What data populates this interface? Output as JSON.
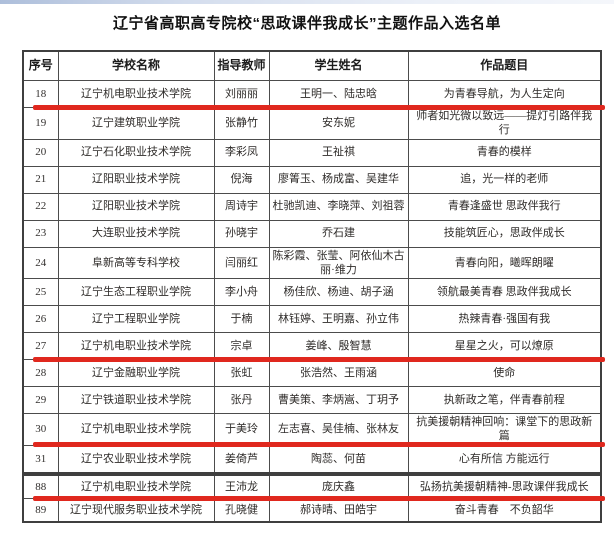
{
  "page": {
    "title": "辽宁省高职高专院校“思政课伴我成长”主题作品入选名单"
  },
  "highlight_color": "#e0281e",
  "table": {
    "headers": [
      "序号",
      "学校名称",
      "指导教师",
      "学生姓名",
      "作品题目"
    ],
    "sections": [
      {
        "rows": [
          {
            "no": "18",
            "school": "辽宁机电职业技术学院",
            "teacher": "刘丽丽",
            "students": "王明一、陆忠晗",
            "work": "为青春导航，为人生定向",
            "highlighted": true
          },
          {
            "no": "19",
            "school": "辽宁建筑职业学院",
            "teacher": "张静竹",
            "students": "安东妮",
            "work": "师者如光微以致远——提灯引路伴我行",
            "highlighted": false
          },
          {
            "no": "20",
            "school": "辽宁石化职业技术学院",
            "teacher": "李彩凤",
            "students": "王祉祺",
            "work": "青春的模样",
            "highlighted": false
          },
          {
            "no": "21",
            "school": "辽阳职业技术学院",
            "teacher": "倪海",
            "students": "廖箐玉、杨成富、吴建华",
            "work": "追，光一样的老师",
            "highlighted": false
          },
          {
            "no": "22",
            "school": "辽阳职业技术学院",
            "teacher": "周诗宇",
            "students": "杜驰凯迪、李晓萍、刘祖蓉",
            "work": "青春逢盛世 思政伴我行",
            "highlighted": false
          },
          {
            "no": "23",
            "school": "大连职业技术学院",
            "teacher": "孙晓宇",
            "students": "乔石建",
            "work": "技能筑匠心，思政伴成长",
            "highlighted": false
          },
          {
            "no": "24",
            "school": "阜新高等专科学校",
            "teacher": "闫丽红",
            "students": "陈彩霞、张莹、阿依仙木古丽·维力",
            "work": "青春向阳，曦晖朗曜",
            "highlighted": false
          },
          {
            "no": "25",
            "school": "辽宁生态工程职业学院",
            "teacher": "李小舟",
            "students": "杨佳欣、杨迪、胡子涵",
            "work": "领航最美青春 思政伴我成长",
            "highlighted": false
          },
          {
            "no": "26",
            "school": "辽宁工程职业学院",
            "teacher": "于楠",
            "students": "林钰婷、王明嘉、孙立伟",
            "work": "热辣青春·强国有我",
            "highlighted": false
          },
          {
            "no": "27",
            "school": "辽宁机电职业技术学院",
            "teacher": "宗卓",
            "students": "姜峰、殷智慧",
            "work": "星星之火，可以燎原",
            "highlighted": true
          },
          {
            "no": "28",
            "school": "辽宁金融职业学院",
            "teacher": "张虹",
            "students": "张浩然、王雨涵",
            "work": "使命",
            "highlighted": false
          },
          {
            "no": "29",
            "school": "辽宁铁道职业技术学院",
            "teacher": "张丹",
            "students": "曹美策、李炳嵩、丁玥予",
            "work": "执新政之笔，伴青春前程",
            "highlighted": false
          },
          {
            "no": "30",
            "school": "辽宁机电职业技术学院",
            "teacher": "于美玲",
            "students": "左志喜、吴佳楠、张林友",
            "work": "抗美援朝精神回响：课堂下的思政新篇",
            "highlighted": true
          },
          {
            "no": "31",
            "school": "辽宁农业职业技术学院",
            "teacher": "姜倚芦",
            "students": "陶蕊、何苗",
            "work": "心有所信 方能远行",
            "highlighted": false
          }
        ]
      },
      {
        "rows": [
          {
            "no": "88",
            "school": "辽宁机电职业技术学院",
            "teacher": "王沛龙",
            "students": "庞庆鑫",
            "work": "弘扬抗美援朝精神-思政课伴我成长",
            "highlighted": true
          },
          {
            "no": "89",
            "school": "辽宁现代服务职业技术学院",
            "teacher": "孔晓健",
            "students": "郝诗晴、田皓宇",
            "work": "奋斗青春　不负韶华",
            "highlighted": false
          }
        ]
      }
    ]
  }
}
